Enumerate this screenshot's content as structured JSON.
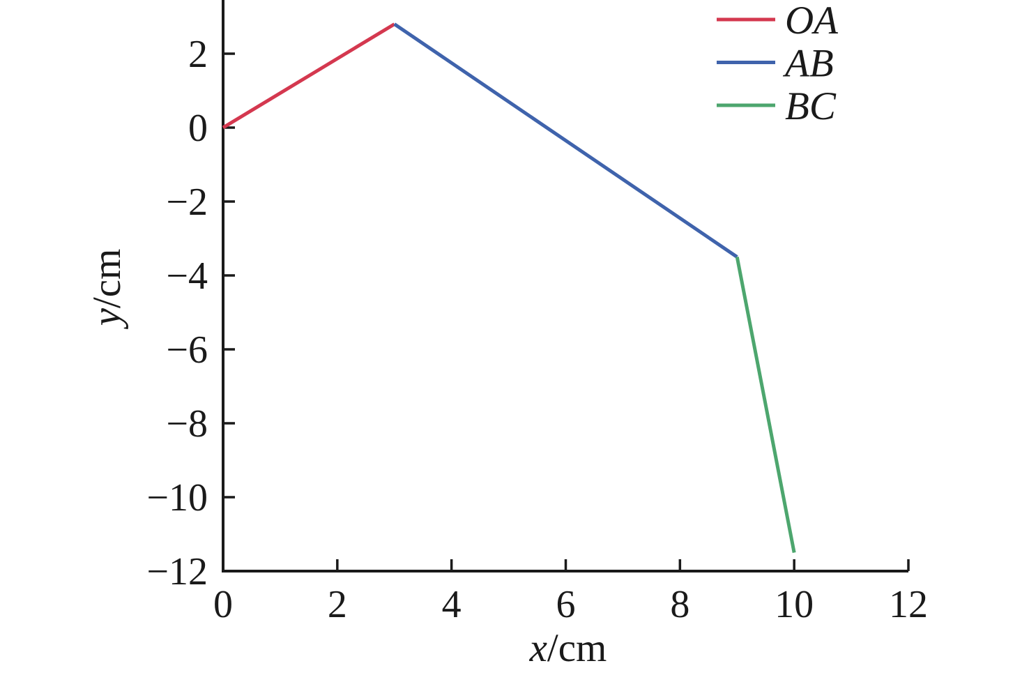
{
  "figure": {
    "background": "#ffffff",
    "axis_color": "#1a1a1a"
  },
  "chart_data": {
    "type": "line",
    "title": "",
    "xlabel": "x/cm",
    "ylabel": "y/cm",
    "xlim": [
      0,
      12
    ],
    "ylim_visible": [
      -12,
      3.45
    ],
    "xticks": [
      0,
      2,
      4,
      6,
      8,
      10,
      12
    ],
    "yticks": [
      2,
      0,
      -2,
      -4,
      -6,
      -8,
      -10,
      -12
    ],
    "grid": false,
    "box": false,
    "tick_direction": "in",
    "legend_position": "top-right",
    "legend_box": false,
    "series": [
      {
        "name": "OA",
        "color": "#d4384f",
        "points": [
          [
            0,
            0
          ],
          [
            3,
            2.8
          ]
        ]
      },
      {
        "name": "AB",
        "color": "#3f63ac",
        "points": [
          [
            3,
            2.8
          ],
          [
            9,
            -3.5
          ]
        ]
      },
      {
        "name": "BC",
        "color": "#4da66e",
        "points": [
          [
            9,
            -3.5
          ],
          [
            10,
            -11.5
          ]
        ]
      }
    ]
  }
}
